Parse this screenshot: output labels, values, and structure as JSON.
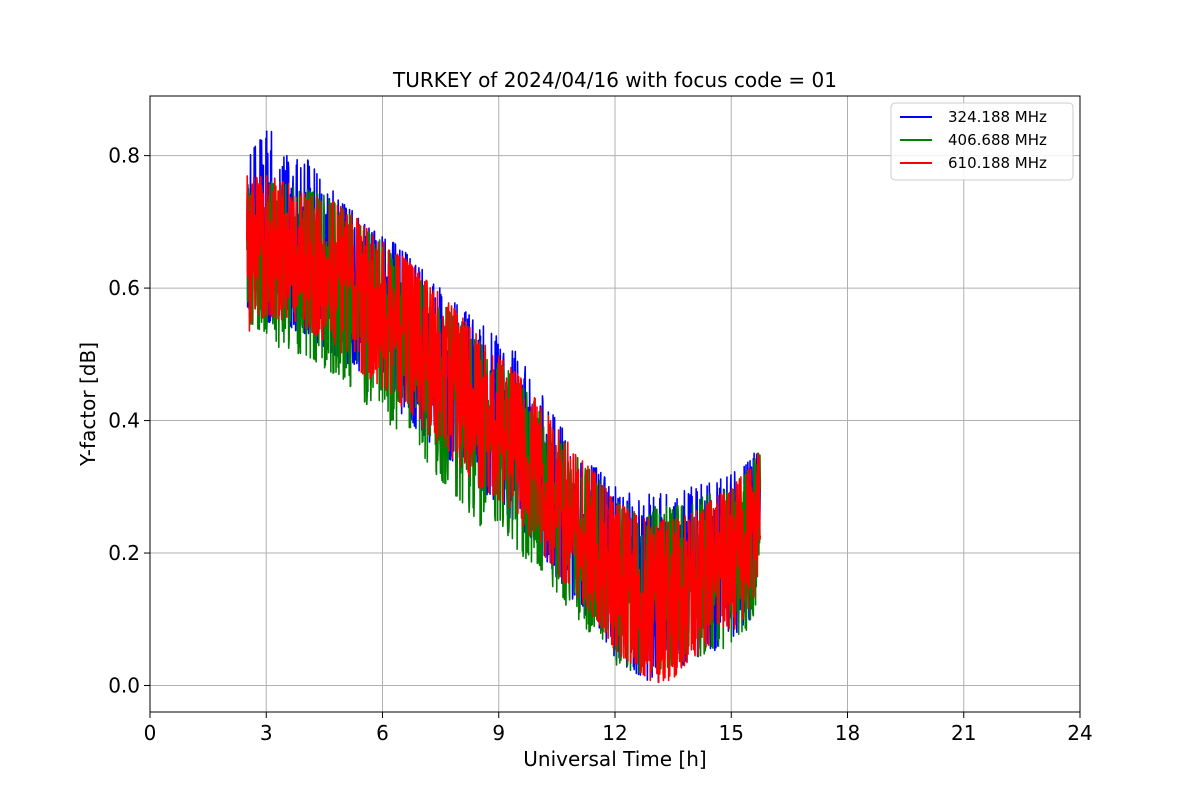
{
  "chart_data": {
    "type": "line",
    "title": "TURKEY of 2024/04/16 with focus code = 01",
    "xlabel": "Universal Time [h]",
    "ylabel": "Y-factor [dB]",
    "xlim": [
      0,
      24
    ],
    "ylim": [
      -0.04,
      0.89
    ],
    "x_ticks": [
      0,
      3,
      6,
      9,
      12,
      15,
      18,
      21,
      24
    ],
    "y_ticks": [
      0.0,
      0.2,
      0.4,
      0.6,
      0.8
    ],
    "x_tick_labels": [
      "0",
      "3",
      "6",
      "9",
      "12",
      "15",
      "18",
      "21",
      "24"
    ],
    "y_tick_labels": [
      "0.0",
      "0.2",
      "0.4",
      "0.6",
      "0.8"
    ],
    "grid": true,
    "legend_position": "top-right",
    "series": [
      {
        "name": "324.188 MHz",
        "color": "#0000ff",
        "x": [
          2.5,
          3.0,
          3.5,
          4.0,
          4.5,
          5.0,
          5.5,
          6.0,
          6.5,
          7.0,
          7.5,
          8.0,
          8.5,
          9.0,
          9.5,
          10.0,
          10.5,
          11.0,
          11.5,
          12.0,
          12.5,
          13.0,
          13.5,
          14.0,
          14.5,
          15.0,
          15.5,
          15.75
        ],
        "y": [
          0.67,
          0.67,
          0.665,
          0.655,
          0.64,
          0.62,
          0.595,
          0.57,
          0.545,
          0.515,
          0.485,
          0.455,
          0.425,
          0.395,
          0.36,
          0.32,
          0.28,
          0.24,
          0.2,
          0.165,
          0.145,
          0.14,
          0.145,
          0.16,
          0.18,
          0.2,
          0.23,
          0.26
        ],
        "min": [
          0.57,
          0.55,
          0.54,
          0.53,
          0.51,
          0.49,
          0.47,
          0.44,
          0.41,
          0.38,
          0.35,
          0.33,
          0.3,
          0.27,
          0.24,
          0.21,
          0.16,
          0.12,
          0.09,
          0.04,
          0.02,
          0.0,
          0.02,
          0.04,
          0.05,
          0.07,
          0.1,
          0.17
        ],
        "max": [
          0.79,
          0.85,
          0.8,
          0.8,
          0.76,
          0.73,
          0.7,
          0.68,
          0.66,
          0.63,
          0.6,
          0.57,
          0.55,
          0.53,
          0.5,
          0.45,
          0.4,
          0.36,
          0.33,
          0.3,
          0.29,
          0.29,
          0.29,
          0.3,
          0.31,
          0.32,
          0.34,
          0.37
        ]
      },
      {
        "name": "406.688 MHz",
        "color": "#008000",
        "x": [
          2.5,
          3.0,
          3.5,
          4.0,
          4.5,
          5.0,
          5.5,
          6.0,
          6.5,
          7.0,
          7.5,
          8.0,
          8.5,
          9.0,
          9.5,
          10.0,
          10.5,
          11.0,
          11.5,
          12.0,
          12.5,
          13.0,
          13.5,
          14.0,
          14.5,
          15.0,
          15.5,
          15.75
        ],
        "y": [
          0.66,
          0.66,
          0.655,
          0.645,
          0.63,
          0.61,
          0.585,
          0.56,
          0.535,
          0.505,
          0.475,
          0.445,
          0.415,
          0.385,
          0.35,
          0.31,
          0.27,
          0.23,
          0.19,
          0.155,
          0.135,
          0.13,
          0.135,
          0.15,
          0.17,
          0.19,
          0.22,
          0.25
        ],
        "min": [
          0.55,
          0.53,
          0.5,
          0.5,
          0.48,
          0.46,
          0.43,
          0.4,
          0.38,
          0.35,
          0.31,
          0.28,
          0.24,
          0.25,
          0.2,
          0.18,
          0.14,
          0.1,
          0.07,
          0.03,
          0.02,
          0.02,
          0.03,
          0.04,
          0.05,
          0.06,
          0.09,
          0.14
        ],
        "max": [
          0.76,
          0.76,
          0.76,
          0.75,
          0.74,
          0.72,
          0.69,
          0.67,
          0.64,
          0.61,
          0.58,
          0.55,
          0.52,
          0.49,
          0.46,
          0.42,
          0.38,
          0.35,
          0.32,
          0.28,
          0.27,
          0.27,
          0.27,
          0.28,
          0.29,
          0.3,
          0.33,
          0.36
        ]
      },
      {
        "name": "610.188 MHz",
        "color": "#ff0000",
        "x": [
          2.5,
          3.0,
          3.5,
          4.0,
          4.5,
          5.0,
          5.5,
          6.0,
          6.5,
          7.0,
          7.5,
          8.0,
          8.5,
          9.0,
          9.5,
          10.0,
          10.5,
          11.0,
          11.5,
          12.0,
          12.5,
          13.0,
          13.5,
          14.0,
          14.5,
          15.0,
          15.5,
          15.75
        ],
        "y": [
          0.665,
          0.665,
          0.66,
          0.65,
          0.635,
          0.615,
          0.59,
          0.565,
          0.54,
          0.51,
          0.48,
          0.45,
          0.42,
          0.39,
          0.355,
          0.315,
          0.275,
          0.235,
          0.195,
          0.16,
          0.14,
          0.135,
          0.14,
          0.155,
          0.175,
          0.195,
          0.225,
          0.255
        ],
        "min": [
          0.53,
          0.56,
          0.55,
          0.54,
          0.52,
          0.5,
          0.47,
          0.45,
          0.42,
          0.39,
          0.36,
          0.33,
          0.3,
          0.28,
          0.25,
          0.21,
          0.17,
          0.13,
          0.1,
          0.05,
          0.03,
          0.0,
          0.01,
          0.04,
          0.06,
          0.08,
          0.11,
          0.18
        ],
        "max": [
          0.77,
          0.77,
          0.76,
          0.75,
          0.74,
          0.72,
          0.7,
          0.67,
          0.65,
          0.62,
          0.59,
          0.56,
          0.53,
          0.5,
          0.47,
          0.43,
          0.39,
          0.35,
          0.32,
          0.28,
          0.26,
          0.25,
          0.25,
          0.26,
          0.28,
          0.3,
          0.33,
          0.36
        ]
      }
    ]
  }
}
